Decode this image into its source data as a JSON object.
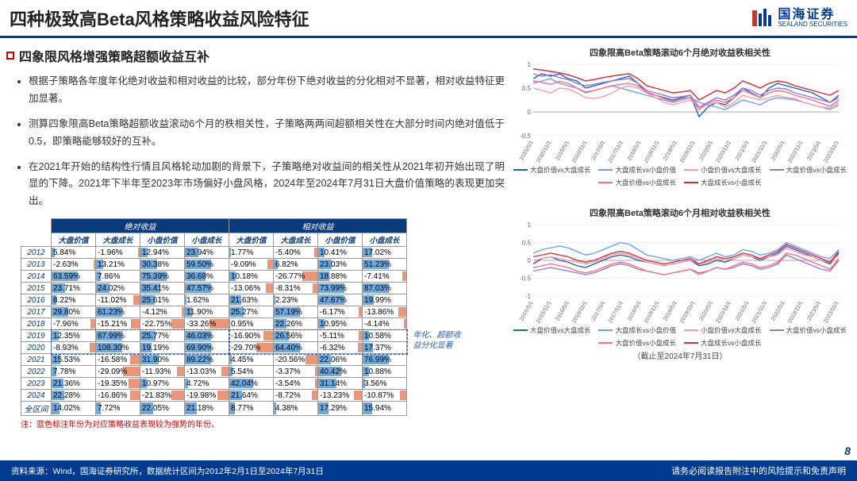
{
  "header": {
    "title": "四种极致高Beta风格策略收益风险特征",
    "logo_cn": "国海证券",
    "logo_en": "SEALAND SECURITIES"
  },
  "subtitle": "四象限风格增强策略超额收益互补",
  "bullets": [
    "根据子策略各年度年化绝对收益和相对收益的比较，部分年份下绝对收益的分化相对不显著，相对收益特征更加显著。",
    "测算四象限高Beta策略超额收益滚动6个月的秩相关性，子策略两两间超额相关性在大部分时间内绝对值低于0.5，即策略能够较好的互补。",
    "在2021年开始的结构性行情且风格轮动加剧的背景下，子策略绝对收益间的相关性从2021年初开始出现了明显的下降。2021年下半年至2023年市场偏好小盘风格，2024年至2024年7月31日大盘价值策略的表现更加突出。"
  ],
  "table": {
    "group_headers": [
      "",
      "绝对收益",
      "相对收益"
    ],
    "sub_headers": [
      "",
      "大盘价值",
      "大盘成长",
      "小盘价值",
      "小盘成长",
      "大盘价值",
      "大盘成长",
      "小盘价值",
      "小盘成长"
    ],
    "rows": [
      {
        "y": "2012",
        "v": [
          "5.84%",
          "-1.96%",
          "12.94%",
          "23.94%",
          "1.77%",
          "-5.40%",
          "10.41%",
          "17.02%"
        ],
        "b": [
          8,
          -3,
          17,
          31,
          3,
          -8,
          14,
          22
        ]
      },
      {
        "y": "2013",
        "v": [
          "-2.63%",
          "13.21%",
          "30.38%",
          "59.50%",
          "-9.09%",
          "6.82%",
          "23.03%",
          "51.23%"
        ],
        "b": [
          -4,
          17,
          39,
          60,
          -12,
          9,
          30,
          60
        ]
      },
      {
        "y": "2014",
        "v": [
          "63.59%",
          "7.86%",
          "75.39%",
          "36.68%",
          "10.18%",
          "-26.77%",
          "18.88%",
          "-7.41%"
        ],
        "b": [
          60,
          10,
          60,
          47,
          14,
          -35,
          25,
          -10
        ]
      },
      {
        "y": "2015",
        "v": [
          "23.71%",
          "24.02%",
          "35.41%",
          "47.57%",
          "-13.06%",
          "-8.31%",
          "73.99%",
          "87.03%"
        ],
        "b": [
          31,
          31,
          46,
          60,
          -17,
          -11,
          60,
          60
        ]
      },
      {
        "y": "2016",
        "v": [
          "8.22%",
          "-11.02%",
          "25.61%",
          "1.62%",
          "21.63%",
          "2.23%",
          "47.67%",
          "19.99%"
        ],
        "b": [
          11,
          -14,
          33,
          3,
          28,
          3,
          60,
          26
        ]
      },
      {
        "y": "2017",
        "v": [
          "29.80%",
          "61.23%",
          "-4.12%",
          "11.90%",
          "25.27%",
          "57.19%",
          "-6.17%",
          "-13.86%"
        ],
        "b": [
          39,
          60,
          -6,
          16,
          33,
          60,
          -8,
          -18
        ]
      },
      {
        "y": "2018",
        "v": [
          "-7.96%",
          "-15.21%",
          "-22.75%",
          "-33.26%",
          "0.95%",
          "22.26%",
          "10.95%",
          "-4.14%"
        ],
        "b": [
          -11,
          -20,
          -30,
          -43,
          2,
          29,
          15,
          -6
        ]
      },
      {
        "y": "2019",
        "v": [
          "12.35%",
          "67.99%",
          "25.77%",
          "46.03%",
          "-16.90%",
          "26.56%",
          "-5.11%",
          "10.58%"
        ],
        "b": [
          16,
          60,
          34,
          60,
          -22,
          35,
          -7,
          14
        ]
      },
      {
        "y": "2020",
        "v": [
          "-8.93%",
          "108.30%",
          "19.19%",
          "69.90%",
          "-29.70%",
          "64.40%",
          "-6.32%",
          "17.37%"
        ],
        "b": [
          -12,
          60,
          25,
          60,
          -39,
          60,
          -9,
          23
        ]
      },
      {
        "y": "2021",
        "v": [
          "15.53%",
          "-16.58%",
          "31.90%",
          "89.22%",
          "4.45%",
          "-20.56%",
          "22.06%",
          "76.99%"
        ],
        "b": [
          20,
          -22,
          42,
          60,
          6,
          -27,
          29,
          60
        ]
      },
      {
        "y": "2022",
        "v": [
          "7.78%",
          "-29.09%",
          "-11.93%",
          "-13.03%",
          "5.54%",
          "-3.37%",
          "40.42%",
          "10.88%"
        ],
        "b": [
          10,
          -38,
          -16,
          -17,
          8,
          -5,
          53,
          15
        ]
      },
      {
        "y": "2023",
        "v": [
          "21.36%",
          "-19.35%",
          "10.97%",
          "4.72%",
          "42.04%",
          "-3.54%",
          "31.14%",
          "3.56%"
        ],
        "b": [
          28,
          -25,
          15,
          7,
          55,
          -5,
          41,
          5
        ]
      },
      {
        "y": "2024",
        "v": [
          "22.28%",
          "-16.86%",
          "-21.83%",
          "-19.98%",
          "21.64%",
          "-8.72%",
          "-13.23%",
          "-10.87%"
        ],
        "b": [
          29,
          -22,
          -29,
          -26,
          29,
          -12,
          -18,
          -15
        ]
      },
      {
        "y": "全区间",
        "v": [
          "14.02%",
          "7.72%",
          "22.05%",
          "21.18%",
          "8.77%",
          "4.38%",
          "17.29%",
          "15.94%"
        ],
        "b": [
          19,
          10,
          29,
          28,
          12,
          6,
          23,
          21
        ]
      }
    ],
    "note": "注：蓝色标注年份为对应策略收益表现较为强势的年份。",
    "dash_label": "年化、超额收\n益分化显著"
  },
  "chart1": {
    "title": "四象限高Beta策略滚动6个月绝对收益秩相关性",
    "ylim": [
      -0.5,
      1
    ],
    "yticks": [
      -0.5,
      0,
      0.5,
      1
    ],
    "xticks": [
      "2015/5/1",
      "2015/11/1",
      "2016/5/1",
      "2016/11/1",
      "2017/5/1",
      "2017/11/1",
      "2018/5/1",
      "2018/11/1",
      "2019/5/1",
      "2019/11/1",
      "2020/5/1",
      "2020/11/1",
      "2021/5/1",
      "2021/11/1",
      "2022/5/1",
      "2022/11/1",
      "2023/5/1",
      "2023/11/1"
    ],
    "series": [
      {
        "name": "大盘价值vs大盘成长",
        "color": "#1f5fbf",
        "pts": [
          0.7,
          0.8,
          0.75,
          0.8,
          0.7,
          0.65,
          0.5,
          0.55,
          0.6,
          0.65,
          0.7,
          0.75,
          0.6,
          0.4,
          0.35,
          0.3,
          0.25,
          0.3,
          0.35,
          -0.1,
          0.1,
          0.2,
          0.15,
          0.3,
          0.5,
          0.4,
          0.3,
          0.5,
          0.6,
          0.55,
          0.5,
          0.45,
          0.4,
          0.3,
          0.2,
          0.35
        ]
      },
      {
        "name": "大盘成长vs小盘价值",
        "color": "#63a0ff",
        "pts": [
          0.6,
          0.65,
          0.7,
          0.6,
          0.55,
          0.5,
          0.4,
          0.45,
          0.5,
          0.55,
          0.5,
          0.45,
          0.4,
          0.35,
          0.3,
          0.25,
          0.2,
          0.25,
          0.3,
          0.2,
          0.15,
          0.1,
          0.05,
          0.15,
          0.25,
          0.2,
          0.15,
          0.25,
          0.3,
          0.28,
          0.25,
          0.2,
          0.15,
          0.1,
          0.05,
          0.15
        ]
      },
      {
        "name": "小盘价值vs大盘成长",
        "color": "#ff99aa",
        "pts": [
          0.5,
          0.45,
          0.4,
          0.5,
          0.48,
          0.4,
          0.3,
          0.28,
          0.32,
          0.4,
          0.5,
          0.55,
          0.5,
          0.4,
          0.3,
          0.2,
          0.15,
          0.2,
          0.25,
          0.1,
          0.15,
          0.2,
          0.1,
          0.2,
          0.35,
          0.3,
          0.25,
          0.3,
          0.35,
          0.3,
          0.28,
          0.2,
          0.15,
          0.1,
          0.08,
          0.2
        ]
      },
      {
        "name": "大盘价值vs小盘成长",
        "color": "#8a7bd6",
        "pts": [
          0.8,
          0.75,
          0.78,
          0.72,
          0.68,
          0.6,
          0.55,
          0.58,
          0.62,
          0.65,
          0.68,
          0.7,
          0.6,
          0.45,
          0.4,
          0.35,
          0.3,
          0.32,
          0.35,
          0.1,
          0.2,
          0.3,
          0.25,
          0.35,
          0.5,
          0.45,
          0.35,
          0.45,
          0.5,
          0.48,
          0.4,
          0.35,
          0.3,
          0.25,
          0.2,
          0.3
        ]
      },
      {
        "name": "大盘价值vs小盘成长",
        "color": "#ff6b81",
        "pts": [
          0.65,
          0.62,
          0.58,
          0.64,
          0.6,
          0.5,
          0.42,
          0.45,
          0.5,
          0.55,
          0.58,
          0.6,
          0.55,
          0.42,
          0.35,
          0.28,
          0.22,
          0.28,
          0.3,
          0.05,
          0.18,
          0.25,
          0.2,
          0.3,
          0.45,
          0.38,
          0.3,
          0.4,
          0.45,
          0.42,
          0.35,
          0.3,
          0.25,
          0.18,
          0.12,
          0.25
        ]
      },
      {
        "name": "大盘成长vs小盘成长",
        "color": "#d62c2c",
        "pts": [
          0.9,
          0.88,
          0.85,
          0.82,
          0.78,
          0.72,
          0.65,
          0.68,
          0.72,
          0.75,
          0.78,
          0.8,
          0.7,
          0.55,
          0.5,
          0.45,
          0.4,
          0.42,
          0.45,
          0.25,
          0.35,
          0.45,
          0.4,
          0.5,
          0.65,
          0.58,
          0.5,
          0.6,
          0.65,
          0.62,
          0.55,
          0.5,
          0.45,
          0.4,
          0.35,
          0.45
        ]
      }
    ]
  },
  "chart2": {
    "title": "四象限高Beta策略滚动6个月相对收益秩相关性",
    "ylim": [
      -1,
      1
    ],
    "yticks": [
      -1,
      -0.5,
      0,
      0.5,
      1
    ],
    "xticks": [
      "2015/5/1",
      "2015/11/1",
      "2016/5/1",
      "2016/11/1",
      "2017/5/1",
      "2017/11/1",
      "2018/5/1",
      "2018/11/1",
      "2019/5/1",
      "2019/11/1",
      "2020/5/1",
      "2020/11/1",
      "2021/5/1",
      "2021/11/1",
      "2022/5/1",
      "2022/11/1",
      "2023/5/1",
      "2023/11/1"
    ],
    "series": [
      {
        "name": "大盘价值vs大盘成长",
        "color": "#1f5fbf",
        "pts": [
          -0.1,
          0.05,
          0.1,
          0.0,
          -0.05,
          -0.15,
          -0.2,
          -0.1,
          0.0,
          0.1,
          0.15,
          0.1,
          0.0,
          -0.05,
          -0.1,
          -0.15,
          -0.1,
          -0.05,
          0.0,
          -0.15,
          -0.1,
          0.0,
          -0.05,
          0.05,
          0.15,
          0.1,
          0.0,
          0.1,
          0.2,
          0.4,
          0.3,
          0.2,
          0.1,
          0.0,
          -0.1,
          0.2
        ]
      },
      {
        "name": "大盘成长vs小盘价值",
        "color": "#63a0ff",
        "pts": [
          0.2,
          0.3,
          0.35,
          0.4,
          0.35,
          0.25,
          0.15,
          0.2,
          0.3,
          0.4,
          0.5,
          0.45,
          0.3,
          0.15,
          0.1,
          0.05,
          0.0,
          0.05,
          0.1,
          0.0,
          0.1,
          0.2,
          0.1,
          0.15,
          0.3,
          0.25,
          0.15,
          0.2,
          0.3,
          0.5,
          0.4,
          0.3,
          0.2,
          0.1,
          0.05,
          0.3
        ]
      },
      {
        "name": "小盘价值vs大盘成长",
        "color": "#ff99aa",
        "pts": [
          0.0,
          0.05,
          0.1,
          0.05,
          0.0,
          -0.05,
          -0.1,
          -0.05,
          0.05,
          0.15,
          0.2,
          0.15,
          0.05,
          -0.05,
          -0.1,
          -0.15,
          -0.1,
          -0.05,
          0.0,
          -0.1,
          -0.05,
          0.05,
          0.0,
          0.05,
          0.15,
          0.1,
          0.05,
          0.1,
          0.15,
          0.35,
          0.25,
          0.15,
          0.1,
          0.0,
          -0.05,
          0.15
        ]
      },
      {
        "name": "大盘价值vs小盘成长",
        "color": "#8a7bd6",
        "pts": [
          -0.3,
          -0.25,
          -0.2,
          -0.25,
          -0.3,
          -0.35,
          -0.4,
          -0.35,
          -0.25,
          -0.15,
          -0.1,
          -0.15,
          -0.25,
          -0.3,
          -0.35,
          -0.4,
          -0.35,
          -0.3,
          -0.25,
          -0.35,
          -0.3,
          -0.2,
          -0.25,
          -0.2,
          -0.1,
          -0.15,
          -0.25,
          -0.2,
          -0.1,
          0.15,
          0.05,
          -0.05,
          -0.15,
          -0.25,
          -0.3,
          0.0
        ]
      },
      {
        "name": "大盘价值vs小盘成长",
        "color": "#ff6b81",
        "pts": [
          -0.2,
          -0.15,
          -0.1,
          -0.15,
          -0.2,
          -0.3,
          -0.35,
          -0.3,
          -0.2,
          -0.1,
          -0.05,
          -0.1,
          -0.2,
          -0.3,
          -0.35,
          -0.4,
          -0.35,
          -0.3,
          -0.25,
          -0.4,
          -0.3,
          -0.2,
          -0.25,
          -0.15,
          -0.05,
          -0.1,
          -0.2,
          -0.15,
          -0.05,
          0.2,
          0.15,
          0.05,
          -0.05,
          -0.15,
          -0.25,
          0.05
        ]
      },
      {
        "name": "大盘成长vs小盘成长",
        "color": "#d62c2c",
        "pts": [
          0.1,
          0.15,
          0.2,
          0.15,
          0.1,
          0.0,
          -0.05,
          0.0,
          0.1,
          0.2,
          0.25,
          0.2,
          0.1,
          0.0,
          -0.05,
          -0.1,
          -0.05,
          0.0,
          0.05,
          -0.1,
          0.0,
          0.1,
          0.05,
          0.1,
          0.2,
          0.15,
          0.05,
          0.15,
          0.25,
          0.45,
          0.35,
          0.25,
          0.15,
          0.05,
          -0.05,
          0.25
        ]
      }
    ],
    "cutoff": "（截止至2024年7月31日）"
  },
  "footer": {
    "src": "资料来源：Wind，国海证券研究所，数据统计区间为2012年2月1日至2024年7月31日",
    "disclaimer": "请务必阅读报告附注中的风险提示和免责声明",
    "page": "8"
  }
}
